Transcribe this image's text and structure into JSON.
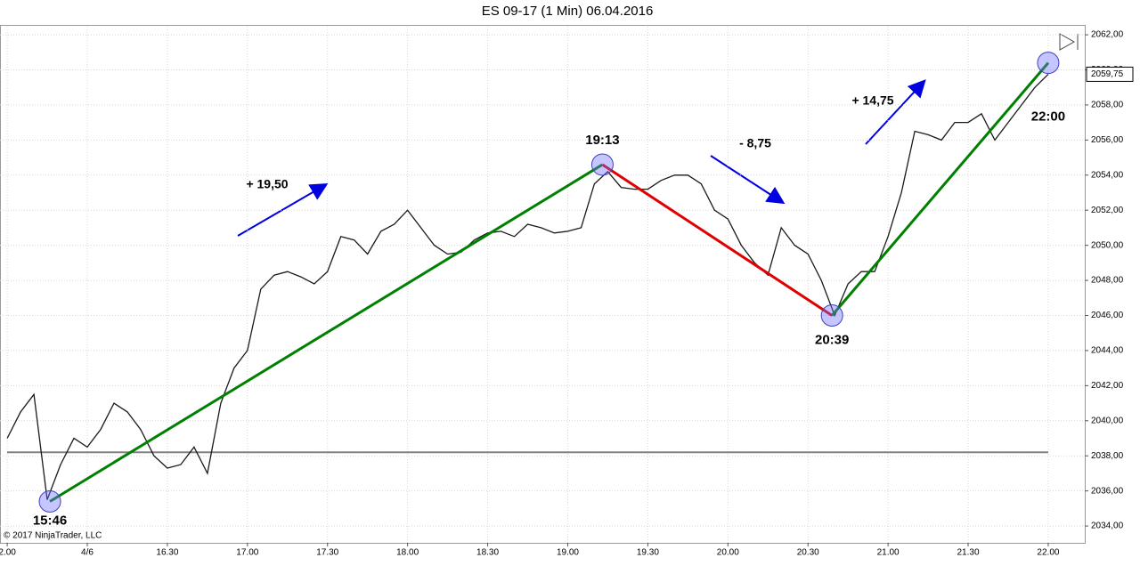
{
  "chart_data": {
    "type": "line",
    "title": "ES 09-17 (1 Min)  06.04.2016",
    "copyright": "© 2017 NinjaTrader, LLC",
    "x": [
      930,
      935,
      940,
      945,
      950,
      955,
      960,
      965,
      970,
      975,
      980,
      985,
      990,
      995,
      1000,
      1005,
      1010,
      1015,
      1020,
      1025,
      1030,
      1035,
      1040,
      1045,
      1050,
      1055,
      1060,
      1065,
      1070,
      1075,
      1080,
      1085,
      1090,
      1095,
      1100,
      1105,
      1110,
      1115,
      1120,
      1125,
      1130,
      1135,
      1140,
      1145,
      1150,
      1155,
      1160,
      1165,
      1170,
      1175,
      1180,
      1185,
      1190,
      1195,
      1200,
      1205,
      1210,
      1215,
      1220,
      1225,
      1230,
      1235,
      1240,
      1245,
      1250,
      1255,
      1260,
      1265,
      1270,
      1275,
      1280,
      1285,
      1290,
      1295,
      1300,
      1305,
      1310,
      1315,
      1320
    ],
    "series": [
      {
        "color": "#1a1a1a",
        "values": [
          2039,
          2040.5,
          2041.5,
          2035.5,
          2037.5,
          2039,
          2038.5,
          2039.5,
          2041,
          2040.5,
          2039.5,
          2038,
          2037.3,
          2037.5,
          2038.5,
          2037,
          2041,
          2043,
          2044,
          2047.5,
          2048.3,
          2048.5,
          2048.2,
          2047.8,
          2048.5,
          2050.5,
          2050.3,
          2049.5,
          2050.8,
          2051.2,
          2052,
          2051,
          2050,
          2049.5,
          2049.6,
          2050.3,
          2050.7,
          2050.8,
          2050.5,
          2051.2,
          2051,
          2050.7,
          2050.8,
          2051,
          2053.5,
          2054.2,
          2053.3,
          2053.2,
          2053.2,
          2053.7,
          2054,
          2054,
          2053.5,
          2052,
          2051.5,
          2050,
          2049,
          2048.3,
          2051,
          2050,
          2049.5,
          2048,
          2046,
          2047.8,
          2048.5,
          2048.5,
          2050.5,
          2053,
          2056.5,
          2056.3,
          2056,
          2057,
          2057,
          2057.5,
          2056,
          2057,
          2058,
          2059,
          2059.75
        ]
      }
    ],
    "xlim": [
      927.3,
      1333.7
    ],
    "ylim": [
      2033.04,
      2062.46
    ],
    "xticks": [
      {
        "value": 930,
        "label": "2.00"
      },
      {
        "value": 960,
        "label": "4/6"
      },
      {
        "value": 990,
        "label": "16.30"
      },
      {
        "value": 1020,
        "label": "17.00"
      },
      {
        "value": 1050,
        "label": "17.30"
      },
      {
        "value": 1080,
        "label": "18.00"
      },
      {
        "value": 1110,
        "label": "18.30"
      },
      {
        "value": 1140,
        "label": "19.00"
      },
      {
        "value": 1170,
        "label": "19.30"
      },
      {
        "value": 1200,
        "label": "20.00"
      },
      {
        "value": 1230,
        "label": "20.30"
      },
      {
        "value": 1260,
        "label": "21.00"
      },
      {
        "value": 1290,
        "label": "21.30"
      },
      {
        "value": 1320,
        "label": "22.00"
      }
    ],
    "yticks": [
      {
        "value": 2034,
        "label": "2034,00"
      },
      {
        "value": 2036,
        "label": "2036,00"
      },
      {
        "value": 2038,
        "label": "2038,00"
      },
      {
        "value": 2040,
        "label": "2040,00"
      },
      {
        "value": 2042,
        "label": "2042,00"
      },
      {
        "value": 2044,
        "label": "2044,00"
      },
      {
        "value": 2046,
        "label": "2046,00"
      },
      {
        "value": 2048,
        "label": "2048,00"
      },
      {
        "value": 2050,
        "label": "2050,00"
      },
      {
        "value": 2052,
        "label": "2052,00"
      },
      {
        "value": 2054,
        "label": "2054,00"
      },
      {
        "value": 2056,
        "label": "2056,00"
      },
      {
        "value": 2058,
        "label": "2058,00"
      },
      {
        "value": 2060,
        "label": "2060,00"
      },
      {
        "value": 2062,
        "label": "2062,00"
      }
    ],
    "grid": true,
    "hline": {
      "value": 2038.2,
      "color": "#808080"
    },
    "last_price": {
      "value": 2059.75,
      "label": "2059,75"
    },
    "key_points": [
      {
        "label": "15:46",
        "x": 946,
        "y": 2035.4
      },
      {
        "label": "19:13",
        "x": 1153,
        "y": 2054.6
      },
      {
        "label": "20:39",
        "x": 1239,
        "y": 2046
      },
      {
        "label": "22:00",
        "x": 1320,
        "y": 2060.4
      }
    ],
    "trend_colors": [
      "#008000",
      "#e00000",
      "#008000"
    ],
    "moves": [
      "+ 19,50",
      "- 8,75",
      "+ 14,75"
    ]
  }
}
